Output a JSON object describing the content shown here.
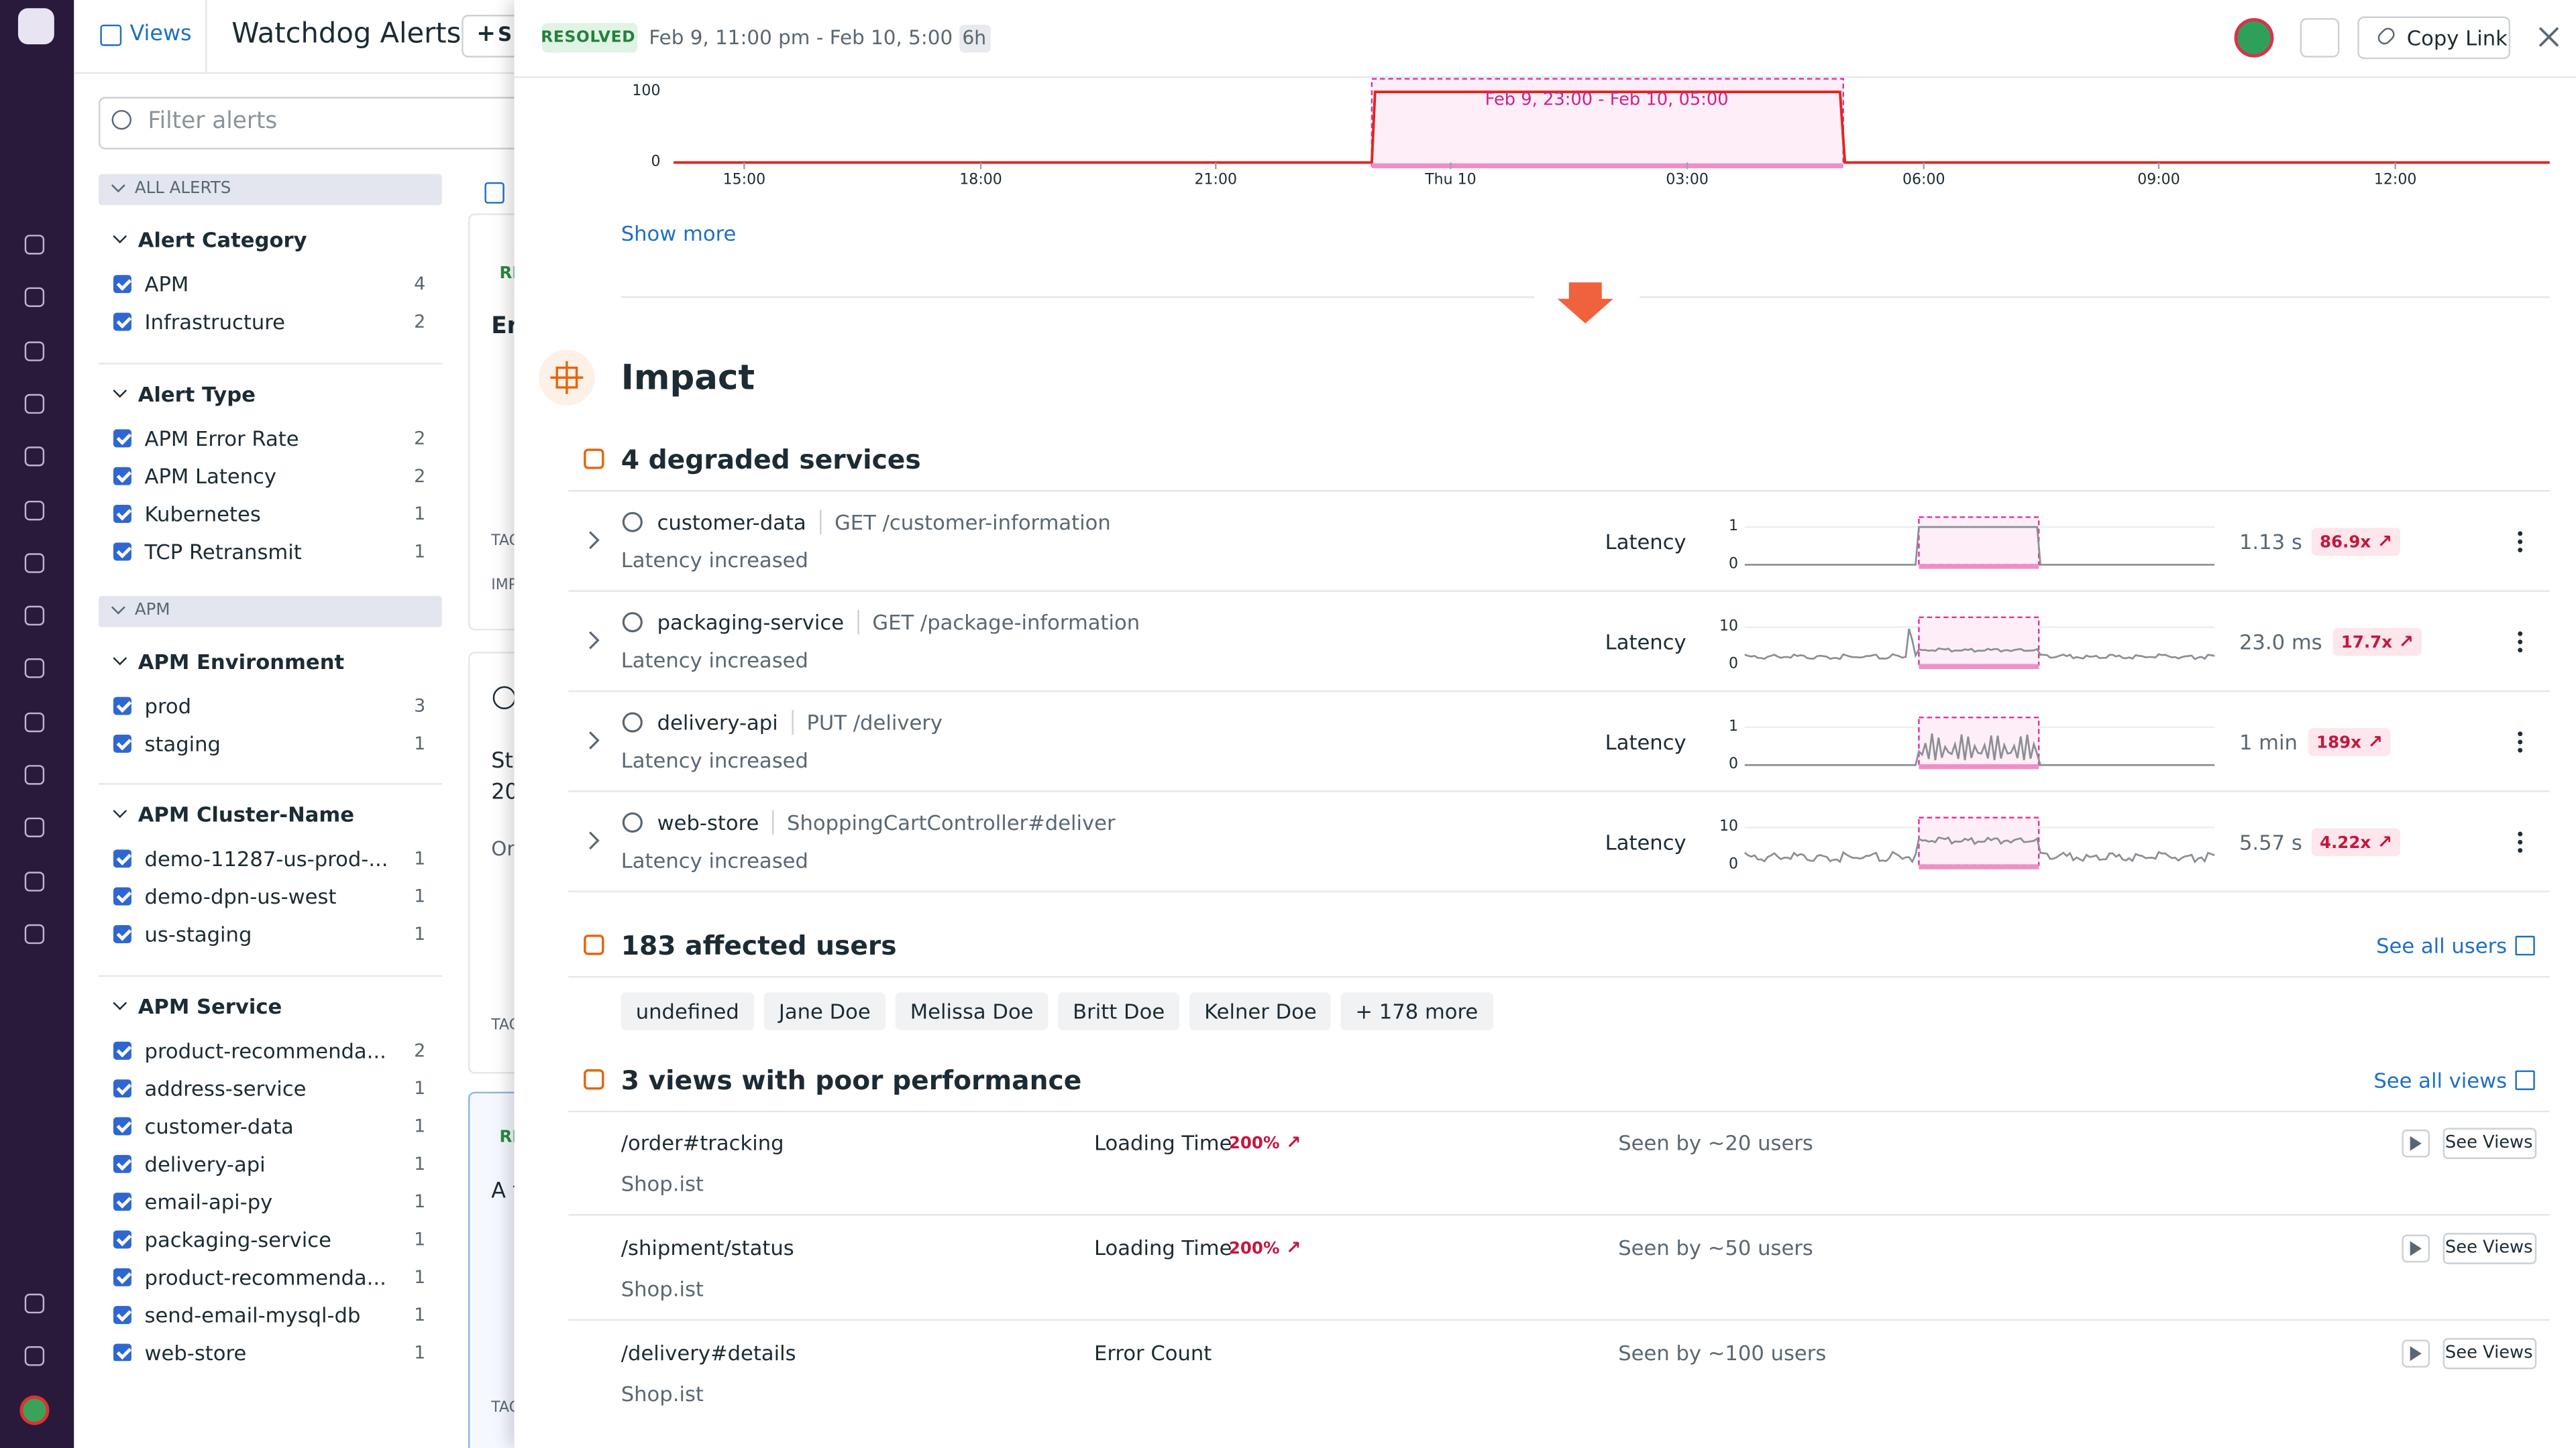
{
  "sidebar": {
    "views": "Views",
    "title": "Watchdog Alerts",
    "new_button": "S"
  },
  "filters": {
    "placeholder": "Filter alerts",
    "sections": [
      "ALL ALERTS",
      "APM"
    ],
    "groups": [
      {
        "title": "Alert Category",
        "items": [
          {
            "label": "APM",
            "count": 4
          },
          {
            "label": "Infrastructure",
            "count": 2
          }
        ]
      },
      {
        "title": "Alert Type",
        "items": [
          {
            "label": "APM Error Rate",
            "count": 2
          },
          {
            "label": "APM Latency",
            "count": 2
          },
          {
            "label": "Kubernetes",
            "count": 1
          },
          {
            "label": "TCP Retransmit",
            "count": 1
          }
        ]
      },
      {
        "title": "APM Environment",
        "items": [
          {
            "label": "prod",
            "count": 3
          },
          {
            "label": "staging",
            "count": 1
          }
        ]
      },
      {
        "title": "APM Cluster-Name",
        "items": [
          {
            "label": "demo-11287-us-prod-...",
            "count": 1
          },
          {
            "label": "demo-dpn-us-west",
            "count": 1
          },
          {
            "label": "us-staging",
            "count": 1
          }
        ]
      },
      {
        "title": "APM Service",
        "items": [
          {
            "label": "product-recommenda...",
            "count": 2
          },
          {
            "label": "address-service",
            "count": 1
          },
          {
            "label": "customer-data",
            "count": 1
          },
          {
            "label": "delivery-api",
            "count": 1
          },
          {
            "label": "email-api-py",
            "count": 1
          },
          {
            "label": "packaging-service",
            "count": 1
          },
          {
            "label": "product-recommenda...",
            "count": 1
          },
          {
            "label": "send-email-mysql-db",
            "count": 1
          },
          {
            "label": "web-store",
            "count": 1
          }
        ]
      }
    ]
  },
  "background": [
    "RE",
    "Er",
    "TAG",
    "IMP",
    "Sta",
    "20",
    "On",
    "TAG",
    "RE",
    "A f",
    "TAG"
  ],
  "panel": {
    "status": "RESOLVED",
    "range": "Feb 9, 11:00 pm - Feb 10, 5:00 am",
    "duration": "6h",
    "copy_link": "Copy Link",
    "chart": {
      "yticks": [
        100,
        0
      ],
      "xticks": [
        "15:00",
        "18:00",
        "21:00",
        "Thu 10",
        "03:00",
        "06:00",
        "09:00",
        "12:00"
      ],
      "annotation": "Feb 9, 23:00 - Feb 10, 05:00"
    },
    "show_more": "Show more",
    "impact": "Impact",
    "services": {
      "title": "4 degraded services",
      "rows": [
        {
          "name": "customer-data",
          "endpoint": "GET /customer-information",
          "status": "Latency increased",
          "metric": "Latency",
          "yticks": [
            1,
            0
          ],
          "value": "1.13 s",
          "ratio": "86.9x"
        },
        {
          "name": "packaging-service",
          "endpoint": "GET /package-information",
          "status": "Latency increased",
          "metric": "Latency",
          "yticks": [
            10,
            0
          ],
          "value": "23.0 ms",
          "ratio": "17.7x"
        },
        {
          "name": "delivery-api",
          "endpoint": "PUT /delivery",
          "status": "Latency increased",
          "metric": "Latency",
          "yticks": [
            1,
            0
          ],
          "value": "1 min",
          "ratio": "189x"
        },
        {
          "name": "web-store",
          "endpoint": "ShoppingCartController#deliver",
          "status": "Latency increased",
          "metric": "Latency",
          "yticks": [
            10,
            0
          ],
          "value": "5.57 s",
          "ratio": "4.22x"
        }
      ]
    },
    "users": {
      "title": "183 affected users",
      "link": "See all users",
      "chips": [
        "undefined",
        "Jane Doe",
        "Melissa Doe",
        "Britt Doe",
        "Kelner Doe",
        "+ 178 more"
      ]
    },
    "views": {
      "title": "3 views with poor performance",
      "link": "See all views",
      "rows": [
        {
          "path": "/order#tracking",
          "app": "Shop.ist",
          "metric": "Loading Time",
          "change": "200%",
          "seen": "Seen by ~20 users",
          "button": "See Views"
        },
        {
          "path": "/shipment/status",
          "app": "Shop.ist",
          "metric": "Loading Time",
          "change": "200%",
          "seen": "Seen by ~50 users",
          "button": "See Views"
        },
        {
          "path": "/delivery#details",
          "app": "Shop.ist",
          "metric": "Error Count",
          "seen": "Seen by ~100 users",
          "button": "See Views"
        }
      ]
    }
  }
}
